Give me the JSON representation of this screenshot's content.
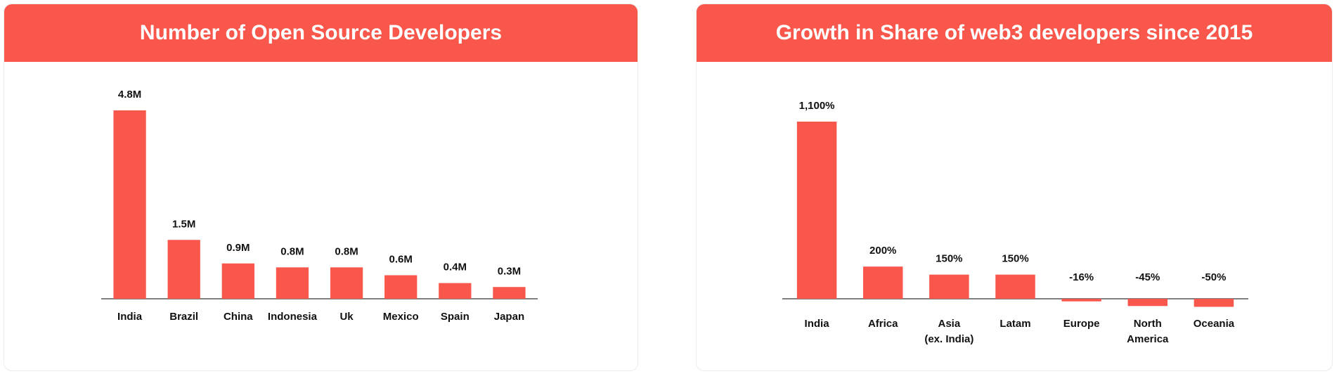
{
  "chart_data": [
    {
      "type": "bar",
      "title": "Number of Open Source Developers",
      "categories": [
        "India",
        "Brazil",
        "China",
        "Indonesia",
        "Uk",
        "Mexico",
        "Spain",
        "Japan"
      ],
      "values": [
        4.8,
        1.5,
        0.9,
        0.8,
        0.8,
        0.6,
        0.4,
        0.3
      ],
      "value_labels": [
        "4.8M",
        "1.5M",
        "0.9M",
        "0.8M",
        "0.8M",
        "0.6M",
        "0.4M",
        "0.3M"
      ],
      "color": "#f9574b"
    },
    {
      "type": "bar",
      "title": "Growth in Share of web3 developers since 2015",
      "categories": [
        "India",
        "Africa",
        "Asia\n(ex. India)",
        "Latam",
        "Europe",
        "North\nAmerica",
        "Oceania"
      ],
      "values": [
        1100,
        200,
        150,
        150,
        -16,
        -45,
        -50
      ],
      "value_labels": [
        "1,100%",
        "200%",
        "150%",
        "150%",
        "-16%",
        "-45%",
        "-50%"
      ],
      "color": "#f9574b"
    }
  ]
}
